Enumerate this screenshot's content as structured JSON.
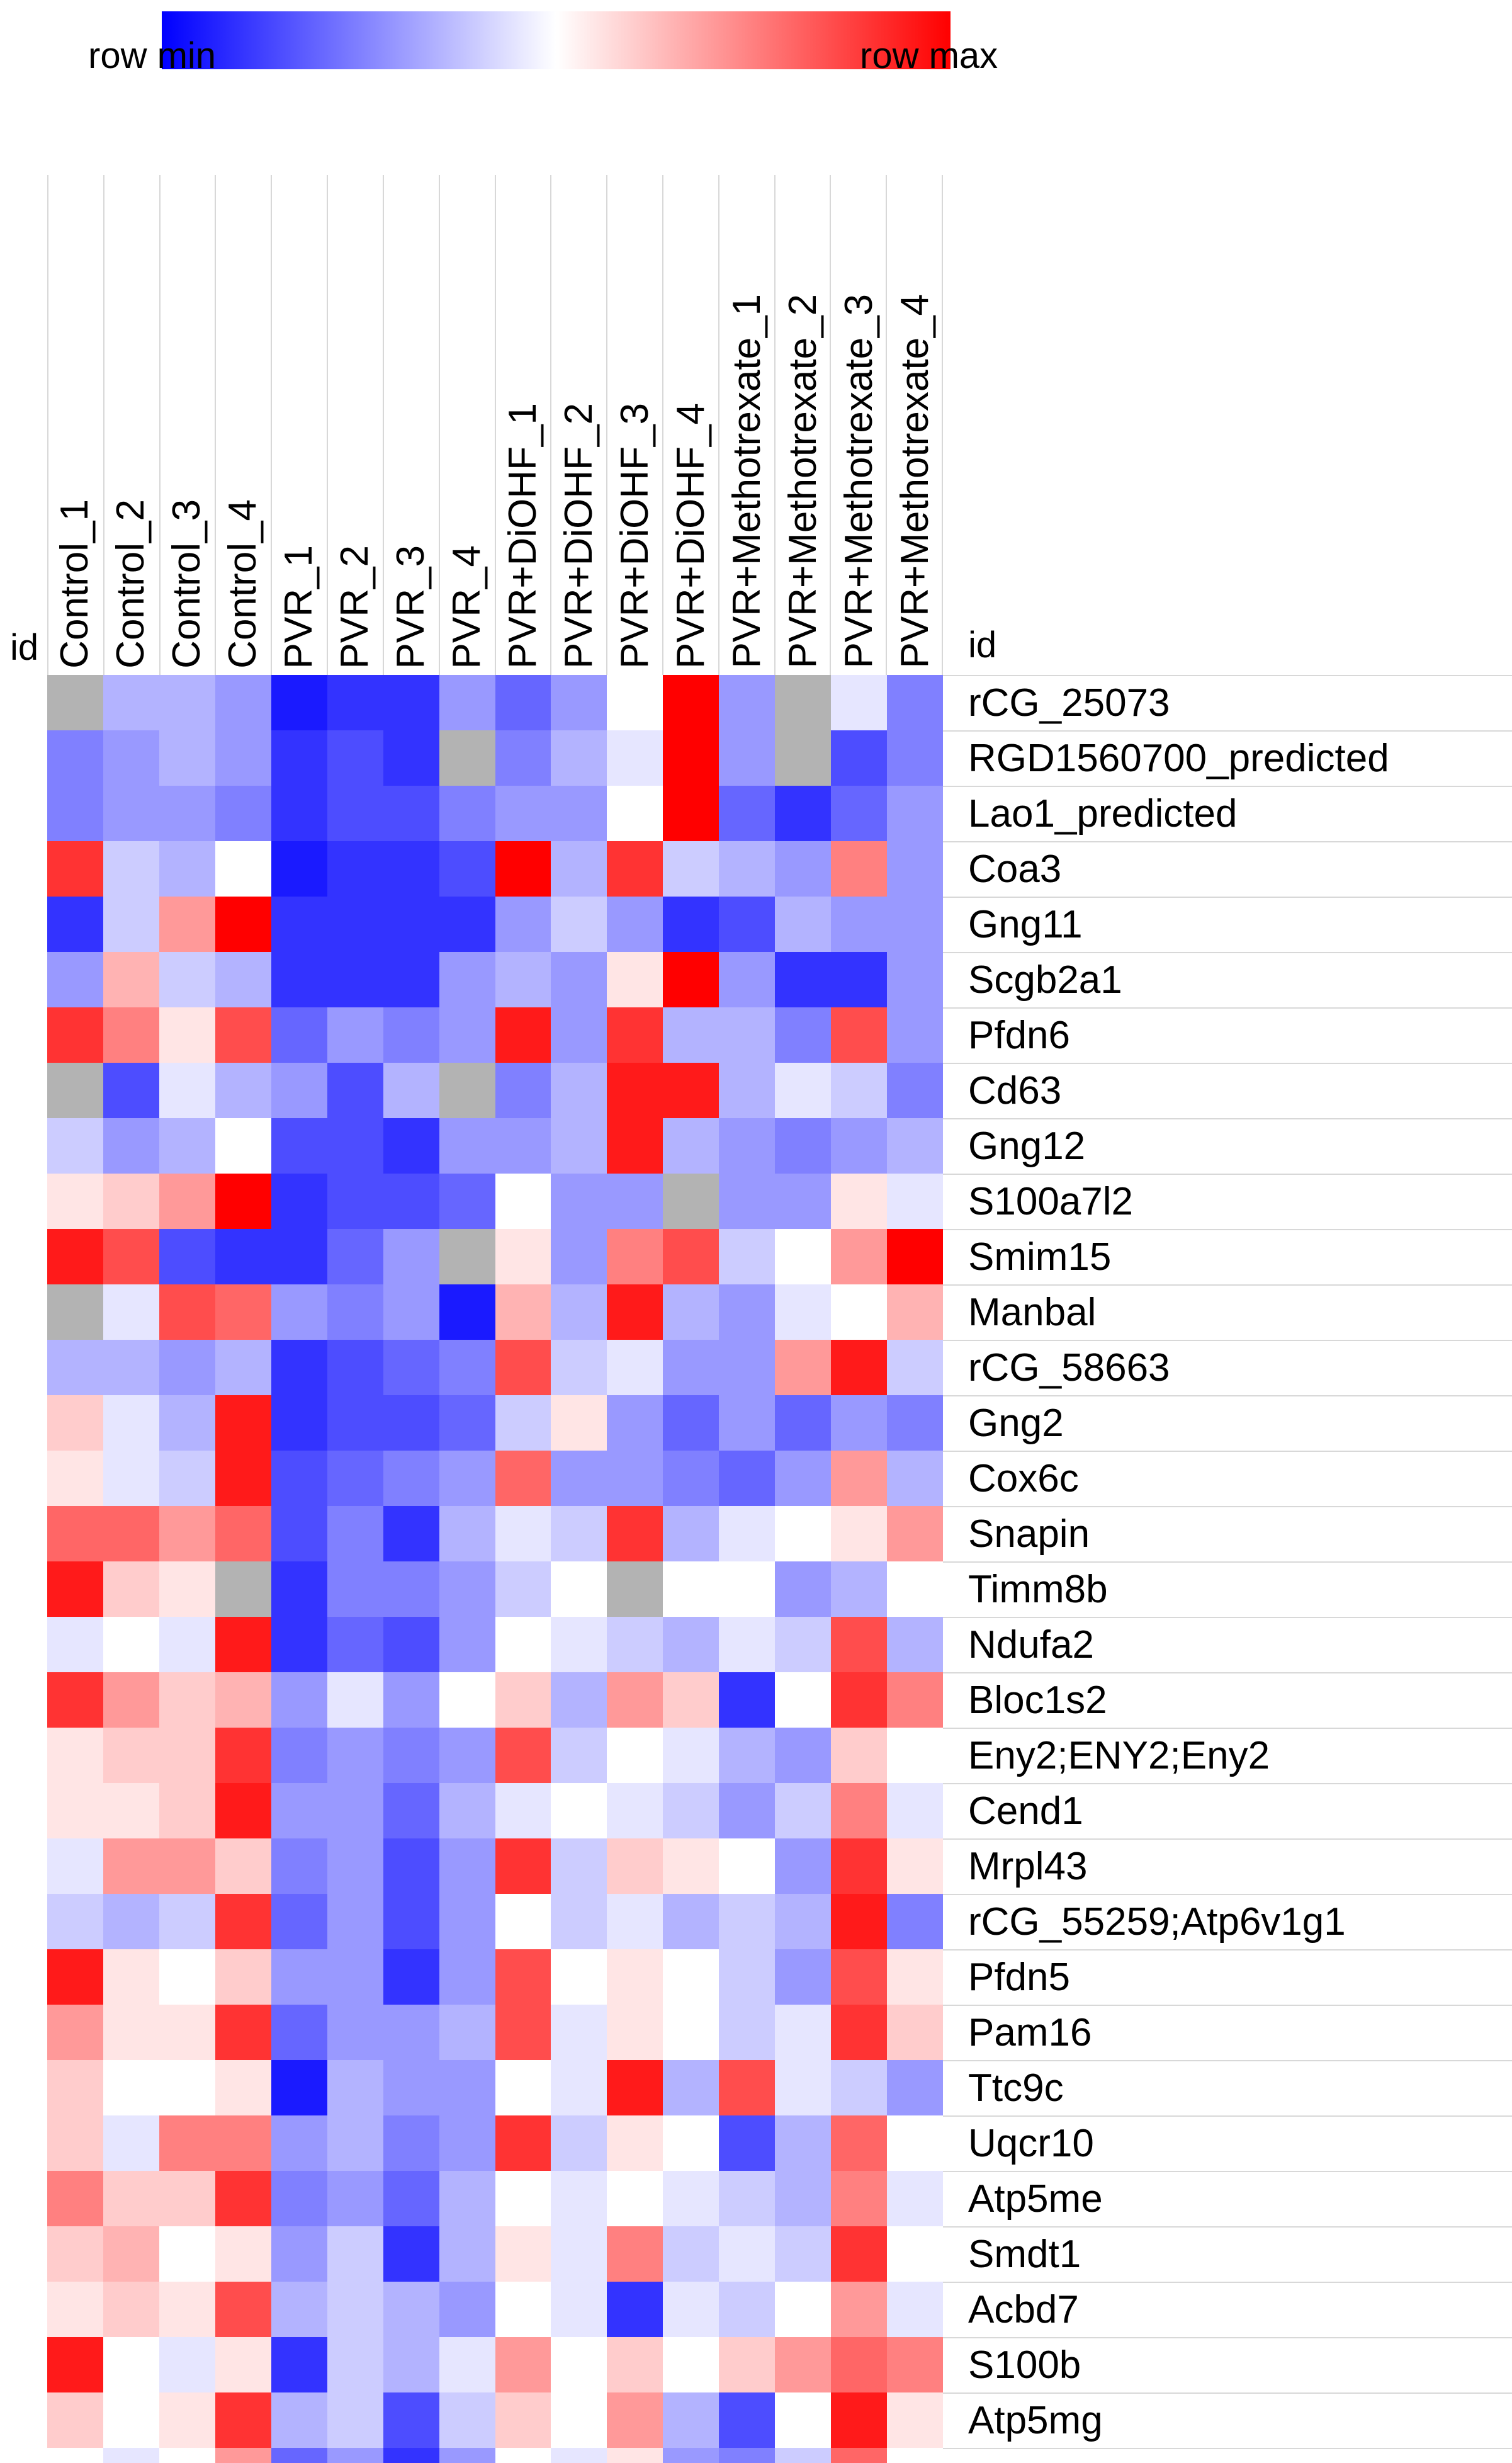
{
  "legend": {
    "min_label": "row min",
    "max_label": "row max"
  },
  "corner": {
    "left_id": "id",
    "right_id": "id"
  },
  "chart_data": {
    "type": "heatmap",
    "title": "",
    "legend_position": "top",
    "colormap": {
      "min": "#0000ff",
      "mid": "#ffffff",
      "max": "#ff0000"
    },
    "na_color": "#b3b3b3",
    "value_encoding": "relative row-normalized expression: 0 = row min (blue), 0.5 = white, 1 = row max (red), null = missing (gray)",
    "columns": [
      "Control_1",
      "Control_2",
      "Control_3",
      "Control_4",
      "PVR_1",
      "PVR_2",
      "PVR_3",
      "PVR_4",
      "PVR+DiOHF_1",
      "PVR+DiOHF_2",
      "PVR+DiOHF_3",
      "PVR+DiOHF_4",
      "PVR+Methotrexate_1",
      "PVR+Methotrexate_2",
      "PVR+Methotrexate_3",
      "PVR+Methotrexate_4"
    ],
    "rows": [
      "rCG_25073",
      "RGD1560700_predicted",
      "Lao1_predicted",
      "Coa3",
      "Gng11",
      "Scgb2a1",
      "Pfdn6",
      "Cd63",
      "Gng12",
      "S100a7l2",
      "Smim15",
      "Manbal",
      "rCG_58663",
      "Gng2",
      "Cox6c",
      "Snapin",
      "Timm8b",
      "Ndufa2",
      "Bloc1s2",
      "Eny2;ENY2;Eny2",
      "Cend1",
      "Mrpl43",
      "rCG_55259;Atp6v1g1",
      "Pfdn5",
      "Pam16",
      "Ttc9c",
      "Uqcr10",
      "Atp5me",
      "Smdt1",
      "Acbd7",
      "S100b",
      "Atp5mg"
    ],
    "values": [
      [
        null,
        0.35,
        0.35,
        0.3,
        0.05,
        0.1,
        0.1,
        0.3,
        0.2,
        0.3,
        0.5,
        1.0,
        0.3,
        null,
        0.45,
        0.25
      ],
      [
        0.25,
        0.3,
        0.35,
        0.3,
        0.1,
        0.15,
        0.1,
        null,
        0.25,
        0.35,
        0.45,
        1.0,
        0.3,
        null,
        0.15,
        0.25
      ],
      [
        0.25,
        0.3,
        0.3,
        0.25,
        0.1,
        0.15,
        0.15,
        0.25,
        0.3,
        0.3,
        0.5,
        1.0,
        0.2,
        0.1,
        0.2,
        0.3
      ],
      [
        0.9,
        0.4,
        0.35,
        0.5,
        0.05,
        0.1,
        0.1,
        0.15,
        1.0,
        0.35,
        0.9,
        0.4,
        0.35,
        0.3,
        0.75,
        0.3
      ],
      [
        0.1,
        0.4,
        0.7,
        1.0,
        0.1,
        0.1,
        0.1,
        0.1,
        0.3,
        0.4,
        0.3,
        0.1,
        0.15,
        0.35,
        0.3,
        0.3
      ],
      [
        0.3,
        0.65,
        0.4,
        0.35,
        0.1,
        0.1,
        0.1,
        0.3,
        0.35,
        0.3,
        0.55,
        1.0,
        0.3,
        0.1,
        0.1,
        0.3
      ],
      [
        0.9,
        0.75,
        0.55,
        0.85,
        0.2,
        0.3,
        0.25,
        0.3,
        0.95,
        0.3,
        0.9,
        0.35,
        0.35,
        0.25,
        0.85,
        0.3
      ],
      [
        null,
        0.15,
        0.45,
        0.35,
        0.3,
        0.15,
        0.35,
        null,
        0.25,
        0.35,
        0.95,
        0.95,
        0.35,
        0.45,
        0.4,
        0.25
      ],
      [
        0.4,
        0.3,
        0.35,
        0.5,
        0.15,
        0.15,
        0.1,
        0.3,
        0.3,
        0.35,
        0.95,
        0.35,
        0.3,
        0.25,
        0.3,
        0.35
      ],
      [
        0.55,
        0.6,
        0.7,
        1.0,
        0.1,
        0.15,
        0.15,
        0.2,
        0.5,
        0.3,
        0.3,
        null,
        0.3,
        0.3,
        0.55,
        0.45
      ],
      [
        0.95,
        0.85,
        0.15,
        0.1,
        0.1,
        0.2,
        0.3,
        null,
        0.55,
        0.3,
        0.75,
        0.85,
        0.4,
        0.5,
        0.7,
        1.0
      ],
      [
        null,
        0.45,
        0.85,
        0.8,
        0.3,
        0.25,
        0.3,
        0.05,
        0.65,
        0.35,
        0.95,
        0.35,
        0.3,
        0.45,
        0.5,
        0.65
      ],
      [
        0.35,
        0.35,
        0.3,
        0.35,
        0.1,
        0.15,
        0.2,
        0.25,
        0.85,
        0.4,
        0.45,
        0.3,
        0.3,
        0.7,
        0.95,
        0.4
      ],
      [
        0.6,
        0.45,
        0.35,
        0.95,
        0.1,
        0.15,
        0.15,
        0.2,
        0.4,
        0.55,
        0.3,
        0.2,
        0.3,
        0.2,
        0.3,
        0.25
      ],
      [
        0.55,
        0.45,
        0.4,
        0.95,
        0.15,
        0.2,
        0.25,
        0.3,
        0.8,
        0.3,
        0.3,
        0.25,
        0.2,
        0.3,
        0.7,
        0.35
      ],
      [
        0.8,
        0.8,
        0.7,
        0.8,
        0.15,
        0.25,
        0.1,
        0.35,
        0.45,
        0.4,
        0.9,
        0.35,
        0.45,
        0.5,
        0.55,
        0.7
      ],
      [
        0.95,
        0.6,
        0.55,
        null,
        0.1,
        0.25,
        0.25,
        0.3,
        0.4,
        0.5,
        null,
        0.5,
        0.5,
        0.3,
        0.35,
        0.5
      ],
      [
        0.45,
        0.5,
        0.45,
        0.95,
        0.1,
        0.2,
        0.15,
        0.3,
        0.5,
        0.45,
        0.4,
        0.35,
        0.45,
        0.4,
        0.85,
        0.35
      ],
      [
        0.9,
        0.7,
        0.6,
        0.65,
        0.3,
        0.45,
        0.3,
        0.5,
        0.6,
        0.35,
        0.7,
        0.6,
        0.1,
        0.5,
        0.9,
        0.75
      ],
      [
        0.55,
        0.6,
        0.6,
        0.9,
        0.25,
        0.3,
        0.25,
        0.3,
        0.85,
        0.4,
        0.5,
        0.45,
        0.35,
        0.3,
        0.6,
        0.5
      ],
      [
        0.55,
        0.55,
        0.6,
        0.95,
        0.3,
        0.3,
        0.2,
        0.35,
        0.45,
        0.5,
        0.45,
        0.4,
        0.3,
        0.4,
        0.75,
        0.45
      ],
      [
        0.45,
        0.7,
        0.7,
        0.6,
        0.25,
        0.3,
        0.15,
        0.3,
        0.9,
        0.4,
        0.6,
        0.55,
        0.5,
        0.3,
        0.9,
        0.55
      ],
      [
        0.4,
        0.35,
        0.4,
        0.9,
        0.2,
        0.3,
        0.15,
        0.3,
        0.5,
        0.4,
        0.45,
        0.35,
        0.4,
        0.35,
        0.95,
        0.25
      ],
      [
        0.95,
        0.55,
        0.5,
        0.6,
        0.3,
        0.3,
        0.1,
        0.3,
        0.85,
        0.5,
        0.55,
        0.5,
        0.4,
        0.3,
        0.85,
        0.55
      ],
      [
        0.7,
        0.55,
        0.55,
        0.9,
        0.2,
        0.3,
        0.3,
        0.35,
        0.85,
        0.45,
        0.55,
        0.5,
        0.4,
        0.45,
        0.9,
        0.6
      ],
      [
        0.6,
        0.5,
        0.5,
        0.55,
        0.05,
        0.35,
        0.3,
        0.3,
        0.5,
        0.45,
        0.95,
        0.35,
        0.85,
        0.45,
        0.4,
        0.3
      ],
      [
        0.6,
        0.45,
        0.75,
        0.75,
        0.3,
        0.35,
        0.25,
        0.3,
        0.9,
        0.4,
        0.55,
        0.5,
        0.15,
        0.35,
        0.8,
        0.5
      ],
      [
        0.75,
        0.6,
        0.6,
        0.9,
        0.25,
        0.3,
        0.2,
        0.35,
        0.5,
        0.45,
        0.5,
        0.45,
        0.4,
        0.35,
        0.75,
        0.45
      ],
      [
        0.6,
        0.65,
        0.5,
        0.55,
        0.3,
        0.4,
        0.1,
        0.35,
        0.55,
        0.45,
        0.75,
        0.4,
        0.45,
        0.4,
        0.9,
        0.5
      ],
      [
        0.55,
        0.6,
        0.55,
        0.85,
        0.35,
        0.4,
        0.35,
        0.3,
        0.5,
        0.45,
        0.1,
        0.45,
        0.4,
        0.5,
        0.7,
        0.45
      ],
      [
        0.95,
        0.5,
        0.45,
        0.55,
        0.1,
        0.4,
        0.35,
        0.45,
        0.7,
        0.5,
        0.6,
        0.5,
        0.6,
        0.7,
        0.8,
        0.75
      ],
      [
        0.6,
        0.5,
        0.55,
        0.9,
        0.35,
        0.4,
        0.15,
        0.4,
        0.6,
        0.5,
        0.7,
        0.35,
        0.15,
        0.5,
        0.95,
        0.55
      ]
    ],
    "partial_row": [
      0.5,
      0.45,
      0.5,
      0.7,
      0.2,
      0.3,
      0.1,
      0.3,
      0.5,
      0.45,
      0.55,
      0.3,
      0.25,
      0.4,
      0.8,
      0.5
    ]
  }
}
